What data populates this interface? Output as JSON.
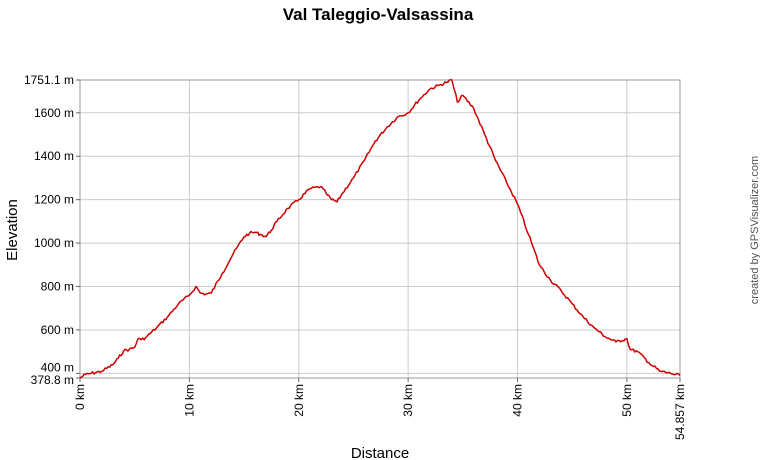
{
  "chart_data": {
    "type": "line",
    "title": "Val Taleggio-Valsassina",
    "xlabel": "Distance",
    "ylabel": "Elevation",
    "xlim": [
      0,
      54.857
    ],
    "ylim": [
      378.8,
      1751.1
    ],
    "x_unit": "km",
    "y_unit": "m",
    "x_ticks": [
      "0 km",
      "10 km",
      "20 km",
      "30 km",
      "40 km",
      "50 km",
      "54.857 km"
    ],
    "x_tick_values": [
      0,
      10,
      20,
      30,
      40,
      50,
      54.857
    ],
    "y_ticks": [
      "378.8 m",
      "400 m",
      "600 m",
      "800 m",
      "1000 m",
      "1200 m",
      "1400 m",
      "1600 m",
      "1751.1 m"
    ],
    "y_tick_values": [
      378.8,
      400,
      600,
      800,
      1000,
      1200,
      1400,
      1600,
      1751.1
    ],
    "grid": true,
    "line_color": "#cc0000",
    "series": [
      {
        "x": [
          0,
          0.5,
          1,
          2,
          3,
          3.5,
          4,
          4.5,
          5,
          5.3,
          5.6,
          6,
          7,
          8,
          9,
          10,
          10.6,
          11,
          11.5,
          12,
          13,
          14,
          15,
          15.5,
          16,
          16.5,
          17,
          17.5,
          18,
          19,
          20,
          21,
          22,
          22.5,
          23,
          23.5,
          24,
          25,
          26,
          27,
          28,
          29,
          30,
          31,
          32,
          33,
          33.5,
          34,
          34.5,
          35,
          36,
          37,
          38,
          39,
          40,
          41,
          42,
          43,
          44,
          45,
          46,
          47,
          48,
          49,
          50,
          50.3,
          51,
          52,
          53,
          54,
          54.857
        ],
        "y": [
          378.8,
          395,
          400,
          410,
          440,
          470,
          505,
          510,
          520,
          560,
          555,
          565,
          610,
          660,
          720,
          760,
          800,
          770,
          765,
          770,
          860,
          950,
          1030,
          1045,
          1050,
          1040,
          1030,
          1060,
          1100,
          1160,
          1200,
          1250,
          1260,
          1230,
          1200,
          1190,
          1230,
          1300,
          1380,
          1470,
          1530,
          1580,
          1600,
          1660,
          1710,
          1730,
          1740,
          1751.1,
          1650,
          1680,
          1620,
          1500,
          1380,
          1280,
          1180,
          1040,
          900,
          830,
          780,
          720,
          660,
          610,
          570,
          545,
          560,
          510,
          500,
          450,
          410,
          400,
          390
        ]
      }
    ]
  },
  "credit": "created by GPSVisualizer.com"
}
